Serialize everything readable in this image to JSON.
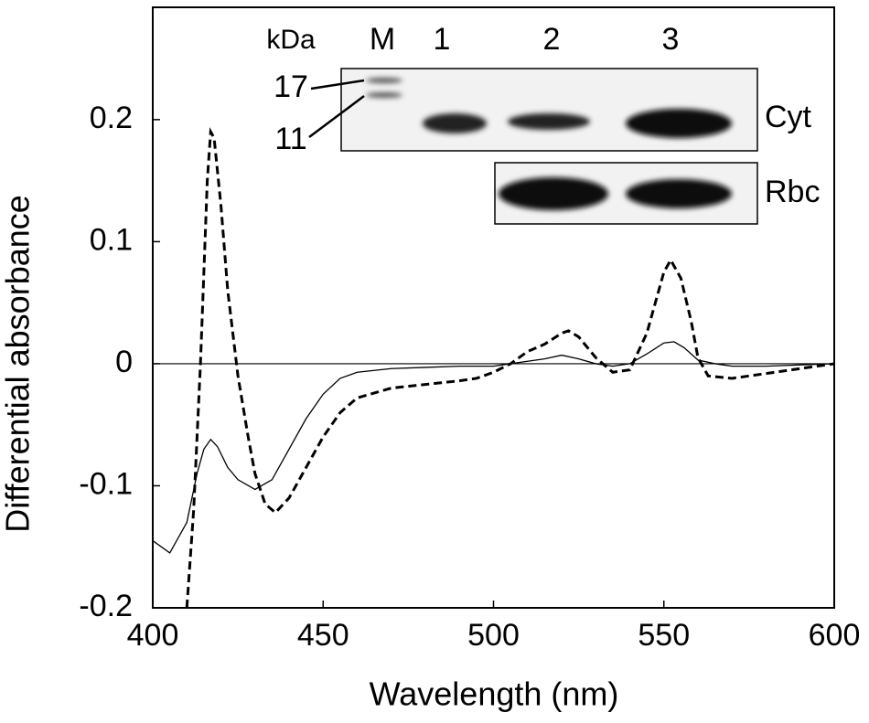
{
  "chart_data": {
    "type": "line",
    "xlabel": "Wavelength (nm)",
    "ylabel": "Differential absorbance",
    "xlim": [
      400,
      600
    ],
    "xticks": [
      400,
      450,
      500,
      550,
      600
    ],
    "ylim": [
      -0.2,
      0.292
    ],
    "yticks": [
      0.2,
      0.1,
      0,
      -0.1,
      -0.2
    ],
    "hline": 0,
    "series": [
      {
        "color": "#000000",
        "line_style": "solid",
        "x": [
          400,
          405,
          410,
          413,
          415,
          417,
          419,
          422,
          425,
          430,
          435,
          440,
          445,
          450,
          455,
          460,
          470,
          480,
          490,
          500,
          505,
          510,
          515,
          520,
          525,
          530,
          535,
          540,
          545,
          550,
          553,
          556,
          560,
          565,
          570,
          580,
          590,
          600
        ],
        "values": [
          -0.145,
          -0.155,
          -0.13,
          -0.09,
          -0.07,
          -0.062,
          -0.068,
          -0.085,
          -0.095,
          -0.103,
          -0.095,
          -0.07,
          -0.045,
          -0.025,
          -0.012,
          -0.007,
          -0.004,
          -0.003,
          -0.002,
          -0.002,
          0,
          0.002,
          0.004,
          0.007,
          0.004,
          0,
          -0.002,
          0,
          0.008,
          0.017,
          0.018,
          0.013,
          0.003,
          0,
          -0.002,
          -0.002,
          -0.001,
          0
        ]
      },
      {
        "color": "#000000",
        "line_style": "dashed",
        "x": [
          410,
          412,
          414,
          416,
          417,
          418,
          420,
          422,
          425,
          428,
          430,
          433,
          436,
          440,
          445,
          450,
          455,
          460,
          470,
          480,
          490,
          495,
          500,
          505,
          510,
          515,
          520,
          522,
          525,
          530,
          535,
          540,
          545,
          550,
          552,
          555,
          558,
          560,
          563,
          570,
          580,
          590,
          600
        ],
        "values": [
          -0.2,
          -0.12,
          0,
          0.15,
          0.19,
          0.185,
          0.13,
          0.06,
          -0.01,
          -0.06,
          -0.09,
          -0.115,
          -0.122,
          -0.11,
          -0.085,
          -0.06,
          -0.04,
          -0.028,
          -0.02,
          -0.017,
          -0.014,
          -0.012,
          -0.007,
          0,
          0.01,
          0.016,
          0.025,
          0.027,
          0.022,
          0.005,
          -0.007,
          -0.005,
          0.025,
          0.075,
          0.085,
          0.07,
          0.035,
          0.005,
          -0.01,
          -0.012,
          -0.008,
          -0.004,
          0
        ]
      }
    ],
    "inset": {
      "unit": "kDa",
      "lanes": [
        "M",
        "1",
        "2",
        "3"
      ],
      "markers": [
        "17",
        "11"
      ],
      "rows": [
        "Cyt",
        "Rbc"
      ]
    }
  }
}
